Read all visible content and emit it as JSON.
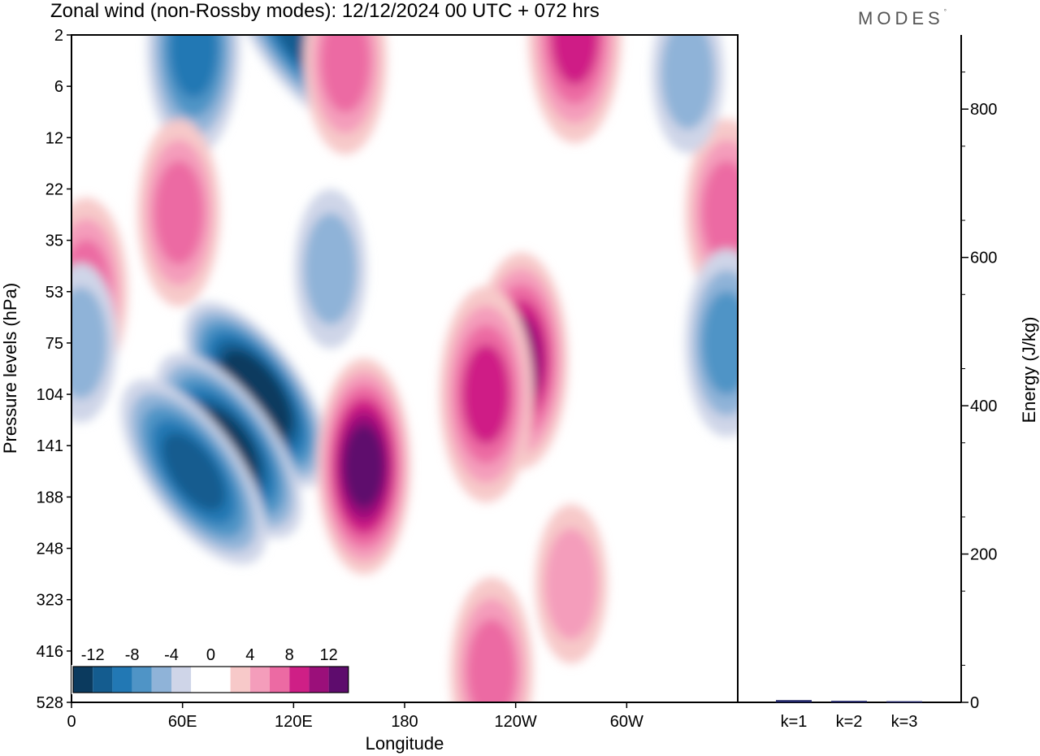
{
  "title": "Zonal wind (non-Rossby modes):  12/12/2024  00 UTC  + 072 hrs",
  "logo": "MODES",
  "colors": {
    "neg": [
      "#0b3a5e",
      "#145c8f",
      "#2278b4",
      "#4f94c6",
      "#8fb3d8",
      "#cfd5e8"
    ],
    "white": "#ffffff",
    "pos": [
      "#f7c9c9",
      "#f49dbb",
      "#ec6aa3",
      "#cf1f86",
      "#9b0f7a",
      "#5e0c6d"
    ],
    "bar": "#1f2466"
  },
  "chart_data": [
    {
      "type": "heatmap",
      "title": "Zonal wind (non-Rossby modes):  12/12/2024  00 UTC  + 072 hrs",
      "xlabel": "Longitude",
      "ylabel": "Pressure levels (hPa)",
      "x_ticks": [
        "0",
        "60E",
        "120E",
        "180",
        "120W",
        "60W"
      ],
      "x_range": [
        0,
        360
      ],
      "y_ticks": [
        "2",
        "6",
        "12",
        "22",
        "35",
        "53",
        "75",
        "104",
        "141",
        "188",
        "248",
        "323",
        "416",
        "528"
      ],
      "colorbar": {
        "ticks": [
          "-12",
          "-8",
          "-4",
          "0",
          "4",
          "8",
          "12"
        ],
        "levels": [
          -14,
          -12,
          -10,
          -8,
          -6,
          -4,
          -2,
          2,
          4,
          6,
          8,
          10,
          12,
          14
        ]
      },
      "features": [
        {
          "lon": 100,
          "lev": 104,
          "value": -14
        },
        {
          "lon": 85,
          "lev": 141,
          "value": -12
        },
        {
          "lon": 66,
          "lev": 165,
          "value": -10
        },
        {
          "lon": 125,
          "lev": 2,
          "value": -10
        },
        {
          "lon": 66,
          "lev": 3,
          "value": -8
        },
        {
          "lon": 158,
          "lev": 160,
          "value": 12
        },
        {
          "lon": 243,
          "lev": 85,
          "value": 10
        },
        {
          "lon": 224,
          "lev": 104,
          "value": 8
        },
        {
          "lon": 272,
          "lev": 2,
          "value": 8
        },
        {
          "lon": 148,
          "lev": 4,
          "value": 6
        },
        {
          "lon": 58,
          "lev": 28,
          "value": 6
        },
        {
          "lon": 8,
          "lev": 53,
          "value": 6
        },
        {
          "lon": 354,
          "lev": 28,
          "value": 6
        },
        {
          "lon": 227,
          "lev": 460,
          "value": 6
        },
        {
          "lon": 270,
          "lev": 300,
          "value": 4
        },
        {
          "lon": 354,
          "lev": 75,
          "value": -6
        },
        {
          "lon": 5,
          "lev": 75,
          "value": -4
        },
        {
          "lon": 140,
          "lev": 45,
          "value": -4
        },
        {
          "lon": 333,
          "lev": 5,
          "value": -4
        }
      ]
    },
    {
      "type": "bar",
      "categories": [
        "k=1",
        "k=2",
        "k=3"
      ],
      "values": [
        3,
        2,
        1.5
      ],
      "ylabel": "Energy (J/kg)",
      "ylim": [
        0,
        900
      ],
      "y_ticks": [
        0,
        200,
        400,
        600,
        800
      ]
    }
  ]
}
